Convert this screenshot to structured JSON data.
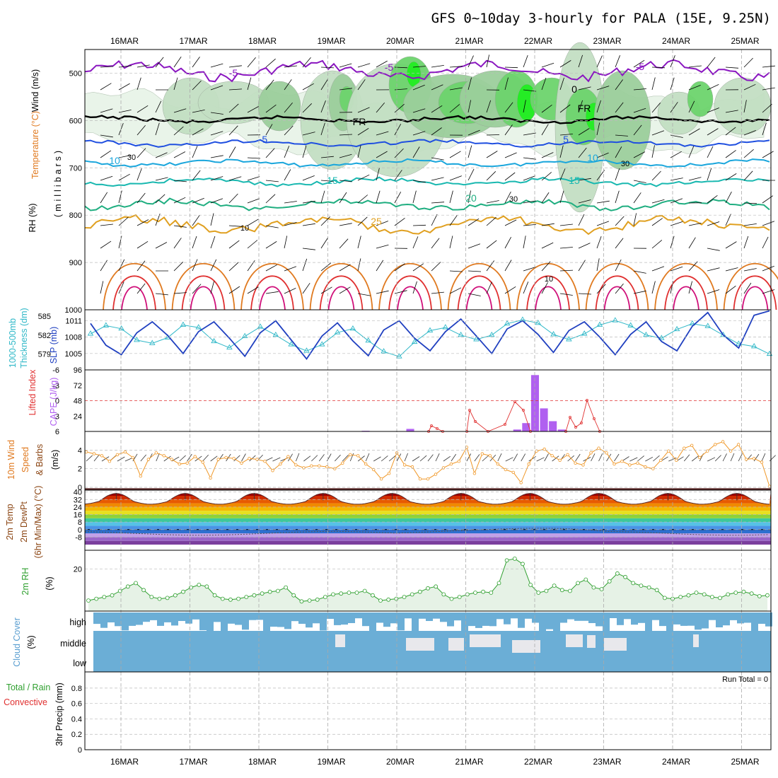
{
  "title": "GFS 0~10day 3-hourly for PALA (15E, 9.25N)",
  "dates": [
    "16MAR",
    "17MAR",
    "18MAR",
    "19MAR",
    "20MAR",
    "21MAR",
    "22MAR",
    "23MAR",
    "24MAR",
    "25MAR"
  ],
  "colors": {
    "rh_fill": [
      "#e9f4e9",
      "#c3dfc3",
      "#9ccf9c",
      "#6dd46d",
      "#22ee22"
    ],
    "temp_purple": "#8a16c0",
    "temp_blue": "#1f4fe0",
    "temp_lightblue": "#1aa6dc",
    "temp_teal": "#19b8b0",
    "temp_green": "#1fae80",
    "temp_gold": "#e0a020",
    "temp_orange": "#e07a20",
    "temp_red": "#e03030",
    "temp_magenta": "#d0107a",
    "slp": "#2040c0",
    "thickness": "#30b8c8",
    "cape": "#b060f0",
    "lifted_index": "#e03030",
    "wind_speed": "#f09828",
    "rh2m": "#30a030",
    "cloud": "#6baed6"
  },
  "panels": {
    "upper": {
      "ylabel_wind": "Wind (m/s)",
      "ylabel_temp": "Temperature (°C)",
      "ylabel_rh": "RH (%)",
      "ylabel_units": "(millibars)",
      "yticks": [
        "500",
        "600",
        "700",
        "800",
        "900",
        "1000"
      ],
      "contour_labels": [
        "-5",
        "-5",
        "-5",
        "0",
        "FR",
        "FR",
        "-5",
        "5",
        "10",
        "10",
        "15",
        "15",
        "20",
        "25",
        "30",
        "30",
        "30",
        "10",
        "10"
      ]
    },
    "thick": {
      "ylabel_a": "1000-500mb",
      "ylabel_b": "Thickness (dm)",
      "ylabel_c": "SLP (mb)",
      "yticks_left": [
        "579",
        "582",
        "585"
      ],
      "yticks_right": [
        "1005",
        "1008",
        "1011"
      ]
    },
    "cape": {
      "ylabel_a": "Lifted Index",
      "ylabel_b": "CAPE (J/kg)",
      "yticks_li": [
        "6",
        "3",
        "0",
        "-3",
        "-6"
      ],
      "yticks_cape": [
        "24",
        "48",
        "72",
        "96"
      ]
    },
    "wind10": {
      "ylabel_a": "10m Wind",
      "ylabel_b": "Speed",
      "ylabel_c": "& Barbs",
      "ylabel_d": "(m/s)",
      "yticks": [
        "0",
        "2",
        "4"
      ]
    },
    "temp2m": {
      "ylabel_a": "2m Temp",
      "ylabel_b": "2m DewPt",
      "ylabel_c": "(6hr Min/Max) (°C)",
      "yticks": [
        "-8",
        "0",
        "8",
        "16",
        "24",
        "32",
        "40"
      ]
    },
    "rh2m": {
      "ylabel_a": "2m RH",
      "ylabel_b": "(%)",
      "yticks": [
        "20"
      ]
    },
    "cloud": {
      "ylabel_a": "Cloud Cover",
      "ylabel_b": "(%)",
      "levels": [
        "high",
        "middle",
        "low"
      ]
    },
    "precip": {
      "ylabel_a": "Total / Rain",
      "ylabel_b": "Convective",
      "ylabel_c": "3hr Precip (mm)",
      "yticks": [
        "0",
        "0.2",
        "0.4",
        "0.6",
        "0.8"
      ],
      "run_total": "Run Total = 0"
    }
  },
  "chart_data": {
    "type": "line",
    "x_axis": "time (3-hourly), 16MAR to 25MAR",
    "series": [
      {
        "name": "SLP (mb)",
        "values": [
          1010.5,
          1006.5,
          1004.8,
          1008.8,
          1010.8,
          1008.3,
          1005.0,
          1009.0,
          1010.8,
          1007.8,
          1004.5,
          1008.8,
          1011.0,
          1007.5,
          1004.0,
          1008.2,
          1010.6,
          1007.3,
          1004.6,
          1009.3,
          1011.0,
          1007.8,
          1005.5,
          1009.0,
          1011.3,
          1008.2,
          1005.0,
          1009.5,
          1011.0,
          1008.5,
          1005.2,
          1009.2,
          1010.8,
          1008.0,
          1004.8,
          1008.5,
          1010.8,
          1007.2,
          1005.5,
          1010.0,
          1012.5,
          1008.4,
          1006.0,
          1012.0,
          1012.8
        ]
      },
      {
        "name": "1000-500mb Thickness (dm)",
        "values": [
          582.2,
          583.5,
          583.0,
          581.2,
          580.7,
          581.6,
          583.6,
          583.2,
          581.0,
          580.0,
          581.8,
          583.3,
          582.0,
          580.5,
          579.5,
          580.5,
          582.4,
          583.0,
          581.1,
          579.4,
          578.6,
          580.9,
          582.7,
          583.2,
          582.0,
          581.3,
          582.0,
          583.8,
          584.4,
          583.9,
          582.1,
          581.3,
          582.2,
          583.6,
          584.3,
          583.5,
          582.0,
          581.5,
          582.9,
          583.8,
          583.4,
          582.0,
          580.6,
          580.2,
          579.0
        ]
      },
      {
        "name": "CAPE (J/kg)",
        "values": [
          0,
          0,
          0,
          0,
          0,
          0,
          0,
          0,
          0,
          0,
          0,
          0,
          0,
          0,
          0,
          0,
          0,
          0,
          0,
          0,
          0,
          0,
          0,
          0,
          0,
          0,
          0,
          0,
          0,
          0,
          0,
          1,
          0,
          0,
          0,
          0,
          4,
          0,
          0,
          0,
          0,
          0,
          0,
          0,
          0,
          0,
          0,
          0,
          3,
          13,
          88,
          36,
          16,
          3,
          0,
          0,
          0,
          0,
          0,
          0,
          0,
          0,
          0,
          0,
          0,
          0,
          0,
          0,
          0,
          0,
          0,
          0,
          0,
          0,
          0,
          0,
          0
        ]
      },
      {
        "name": "10m Wind Speed (m/s)",
        "values": [
          3.8,
          3.6,
          3.4,
          2.8,
          3.5,
          3.8,
          3.2,
          1.2,
          3.0,
          3.7,
          3.4,
          3.0,
          2.5,
          2.6,
          3.3,
          2.7,
          1.0,
          3.0,
          3.2,
          3.1,
          2.6,
          3.1,
          3.0,
          2.8,
          1.8,
          2.5,
          3.3,
          2.4,
          2.1,
          2.3,
          2.3,
          2.2,
          2.0,
          2.6,
          3.5,
          3.4,
          2.5,
          1.9,
          0.9,
          1.5,
          3.7,
          2.4,
          2.2,
          0.9,
          0.9,
          1.4,
          2.1,
          2.5,
          2.8,
          4.3,
          1.5,
          3.6,
          3.4,
          2.5,
          1.9,
          1.6,
          0.5,
          2.5,
          3.9,
          4.1,
          3.4,
          2.9,
          3.5,
          2.6,
          2.4,
          3.7,
          4.2,
          3.7,
          2.5,
          2.8,
          2.4,
          2.6,
          2.2,
          2.0,
          2.9,
          3.9,
          2.9,
          4.2,
          4.5,
          3.2,
          3.9,
          4.6,
          4.9,
          3.9,
          4.6,
          3.0,
          3.1,
          2.7,
          0.1
        ]
      },
      {
        "name": "2m RH (%)",
        "values": [
          2.0,
          3.0,
          4.0,
          5.0,
          7.5,
          10.0,
          12.0,
          8.0,
          4.0,
          3.0,
          3.5,
          5.0,
          7.0,
          9.5,
          11.0,
          10.0,
          5.0,
          3.0,
          2.5,
          3.0,
          4.0,
          5.0,
          6.0,
          7.0,
          7.5,
          9.5,
          5.0,
          1.5,
          2.0,
          2.5,
          4.0,
          5.5,
          6.0,
          6.5,
          6.5,
          7.5,
          5.0,
          2.0,
          2.5,
          3.0,
          4.0,
          5.5,
          7.0,
          9.0,
          10.0,
          5.5,
          3.0,
          4.0,
          5.5,
          6.5,
          7.0,
          6.5,
          12.0,
          25.0,
          26.0,
          23.0,
          11.0,
          6.5,
          7.5,
          10.5,
          8.0,
          7.5,
          12.0,
          14.0,
          9.5,
          8.5,
          13.0,
          17.5,
          15.5,
          12.0,
          10.5,
          9.5,
          8.0,
          3.5,
          3.0,
          4.0,
          5.0,
          6.5,
          5.5,
          4.0,
          3.5,
          5.5,
          6.5,
          7.0,
          6.0,
          4.5,
          5.0
        ]
      }
    ]
  }
}
